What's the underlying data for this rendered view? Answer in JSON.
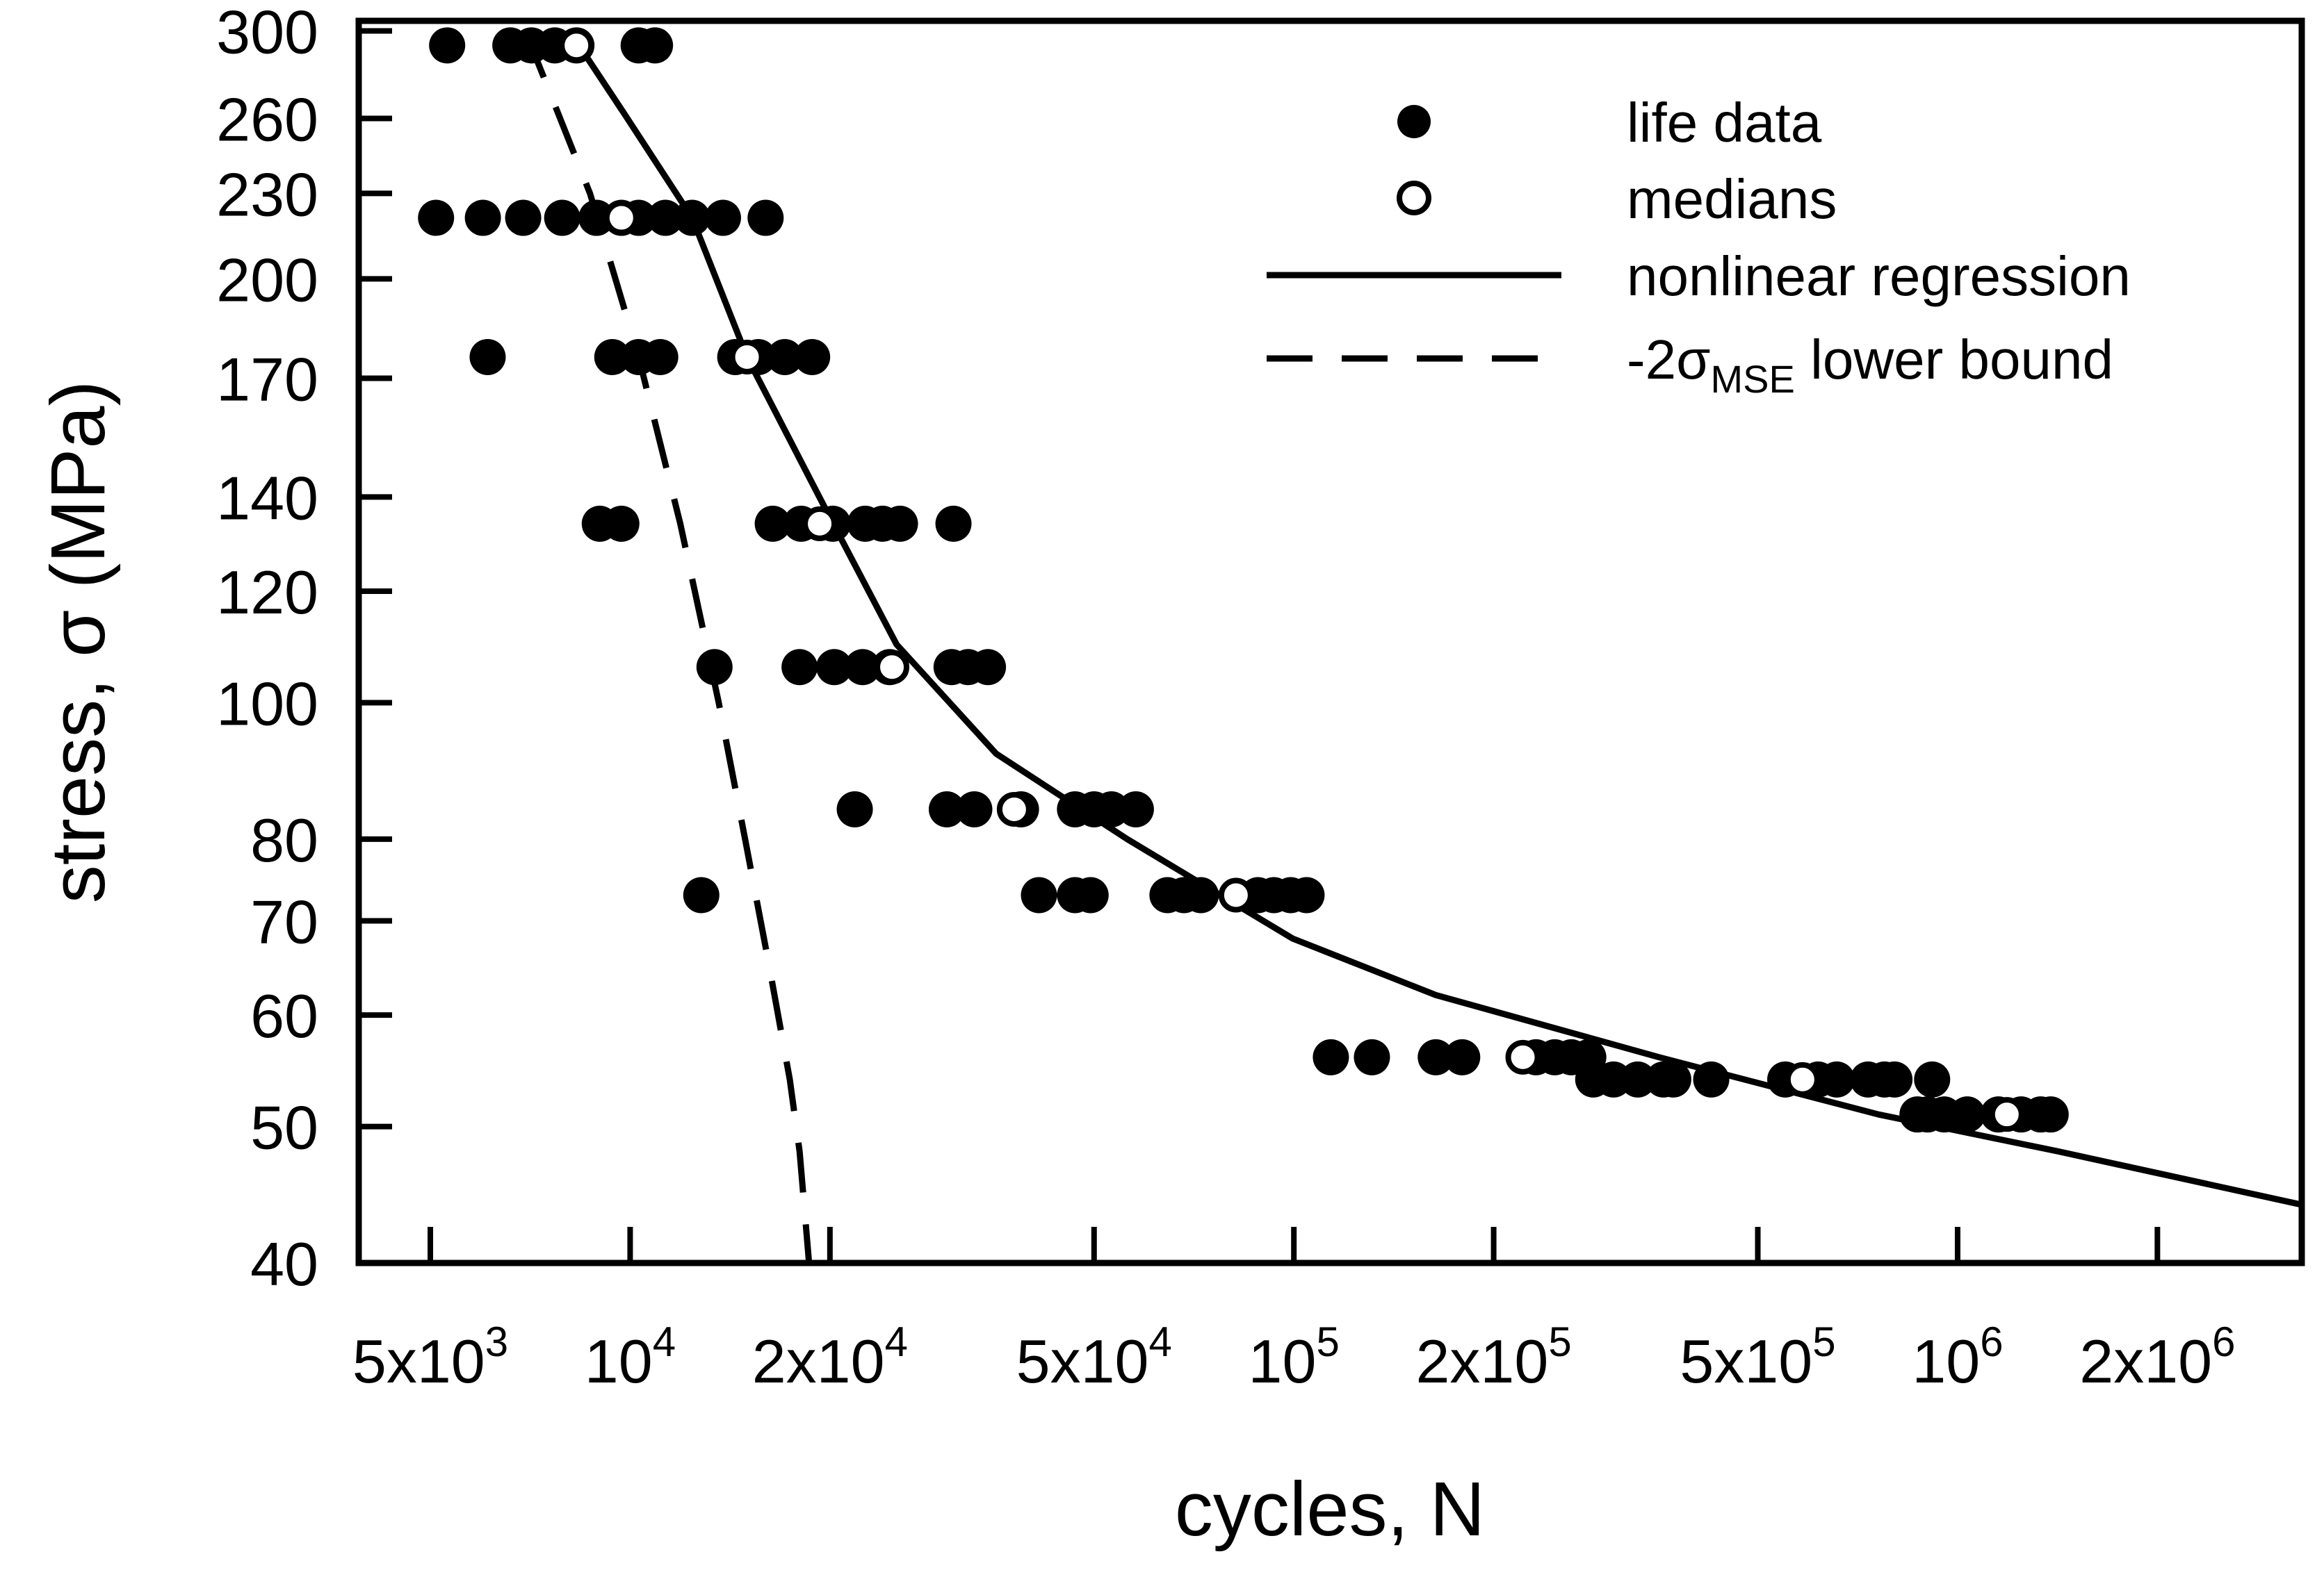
{
  "chart_data": {
    "type": "scatter",
    "xlabel": "cycles, N",
    "ylabel": "stress, σ (MPa)",
    "x_scale": "log",
    "y_scale": "log",
    "xlim": [
      3900,
      3300000
    ],
    "ylim": [
      40,
      305
    ],
    "x_ticks": [
      {
        "value": 5000,
        "base": "5x10",
        "exp": "3"
      },
      {
        "value": 10000,
        "base": "10",
        "exp": "4"
      },
      {
        "value": 20000,
        "base": "2x10",
        "exp": "4"
      },
      {
        "value": 50000,
        "base": "5x10",
        "exp": "4"
      },
      {
        "value": 100000,
        "base": "10",
        "exp": "5"
      },
      {
        "value": 200000,
        "base": "2x10",
        "exp": "5"
      },
      {
        "value": 500000,
        "base": "5x10",
        "exp": "5"
      },
      {
        "value": 1000000,
        "base": "10",
        "exp": "6"
      },
      {
        "value": 2000000,
        "base": "2x10",
        "exp": "6"
      }
    ],
    "y_ticks": [
      {
        "value": 40,
        "label": "40"
      },
      {
        "value": 50,
        "label": "50"
      },
      {
        "value": 60,
        "label": "60"
      },
      {
        "value": 70,
        "label": "70"
      },
      {
        "value": 80,
        "label": "80"
      },
      {
        "value": 100,
        "label": "100"
      },
      {
        "value": 120,
        "label": "120"
      },
      {
        "value": 140,
        "label": "140"
      },
      {
        "value": 170,
        "label": "170"
      },
      {
        "value": 200,
        "label": "200"
      },
      {
        "value": 230,
        "label": "230"
      },
      {
        "value": 260,
        "label": "260"
      },
      {
        "value": 300,
        "label": "300"
      }
    ],
    "legend": {
      "position": "top-right",
      "entries": [
        {
          "key": "life_data",
          "text": "life data"
        },
        {
          "key": "medians",
          "text": "medians"
        },
        {
          "key": "regression",
          "text": "nonlinear regression"
        },
        {
          "key": "lower_bound",
          "text_prefix": "-2σ",
          "text_sub": "MSE",
          "text_suffix": " lower bound"
        }
      ]
    },
    "series": [
      {
        "name": "life data",
        "kind": "filled-points",
        "points": [
          [
            5300,
            293
          ],
          [
            6600,
            293
          ],
          [
            7100,
            293
          ],
          [
            7700,
            293
          ],
          [
            8300,
            293
          ],
          [
            10300,
            293
          ],
          [
            10900,
            293
          ],
          [
            5100,
            221
          ],
          [
            6000,
            221
          ],
          [
            6900,
            221
          ],
          [
            7900,
            221
          ],
          [
            8900,
            221
          ],
          [
            9700,
            221
          ],
          [
            10300,
            221
          ],
          [
            11300,
            221
          ],
          [
            12400,
            221
          ],
          [
            13800,
            221
          ],
          [
            16000,
            221
          ],
          [
            6100,
            176
          ],
          [
            9400,
            176
          ],
          [
            10300,
            176
          ],
          [
            11100,
            176
          ],
          [
            14400,
            176
          ],
          [
            15600,
            176
          ],
          [
            17100,
            176
          ],
          [
            18800,
            176
          ],
          [
            9000,
            134
          ],
          [
            9700,
            134
          ],
          [
            16400,
            134
          ],
          [
            18100,
            134
          ],
          [
            20200,
            134
          ],
          [
            22600,
            134
          ],
          [
            24000,
            134
          ],
          [
            25500,
            134
          ],
          [
            30700,
            134
          ],
          [
            13400,
            106
          ],
          [
            18000,
            106
          ],
          [
            20300,
            106
          ],
          [
            22400,
            106
          ],
          [
            24600,
            106
          ],
          [
            30500,
            106
          ],
          [
            32300,
            106
          ],
          [
            34600,
            106
          ],
          [
            21800,
            84
          ],
          [
            30000,
            84
          ],
          [
            33000,
            84
          ],
          [
            38800,
            84
          ],
          [
            46800,
            84
          ],
          [
            50000,
            84
          ],
          [
            53100,
            84
          ],
          [
            57800,
            84
          ],
          [
            12800,
            73
          ],
          [
            41300,
            73
          ],
          [
            46800,
            73
          ],
          [
            49400,
            73
          ],
          [
            64500,
            73
          ],
          [
            68300,
            73
          ],
          [
            72400,
            73
          ],
          [
            88300,
            73
          ],
          [
            93300,
            73
          ],
          [
            98900,
            73
          ],
          [
            104500,
            73
          ],
          [
            113700,
            56
          ],
          [
            131100,
            56
          ],
          [
            163600,
            56
          ],
          [
            179300,
            56
          ],
          [
            231600,
            56
          ],
          [
            247200,
            56
          ],
          [
            261800,
            56
          ],
          [
            277700,
            56
          ],
          [
            282500,
            54
          ],
          [
            303100,
            54
          ],
          [
            329700,
            54
          ],
          [
            360300,
            54
          ],
          [
            372900,
            54
          ],
          [
            425400,
            54
          ],
          [
            550000,
            54
          ],
          [
            616500,
            54
          ],
          [
            657600,
            54
          ],
          [
            733100,
            54
          ],
          [
            776000,
            54
          ],
          [
            803300,
            54
          ],
          [
            915400,
            54
          ],
          [
            870100,
            51
          ],
          [
            901100,
            51
          ],
          [
            954100,
            51
          ],
          [
            1034100,
            51
          ],
          [
            1152100,
            51
          ],
          [
            1246600,
            51
          ],
          [
            1334200,
            51
          ],
          [
            1381000,
            51
          ]
        ]
      },
      {
        "name": "medians",
        "kind": "open-points",
        "points": [
          [
            8300,
            293
          ],
          [
            9700,
            221
          ],
          [
            15000,
            176
          ],
          [
            19300,
            134
          ],
          [
            24800,
            106
          ],
          [
            37900,
            84
          ],
          [
            81800,
            73
          ],
          [
            221300,
            56
          ],
          [
            583900,
            54
          ],
          [
            1186300,
            51
          ]
        ]
      },
      {
        "name": "nonlinear regression",
        "kind": "solid-line",
        "points": [
          [
            8100,
            300
          ],
          [
            9800,
            262
          ],
          [
            12400,
            221
          ],
          [
            15000,
            176
          ],
          [
            19900,
            136
          ],
          [
            25200,
            110
          ],
          [
            35600,
            92
          ],
          [
            56100,
            80
          ],
          [
            99600,
            68
          ],
          [
            163600,
            62
          ],
          [
            355000,
            56
          ],
          [
            760000,
            51
          ],
          [
            1420000,
            48
          ],
          [
            3300000,
            44
          ]
        ]
      },
      {
        "name": "-2σMSE lower bound",
        "kind": "dashed-line",
        "points": [
          [
            6950,
            300
          ],
          [
            8700,
            230
          ],
          [
            10300,
            176
          ],
          [
            11900,
            134
          ],
          [
            13600,
            100
          ],
          [
            14900,
            80
          ],
          [
            16200,
            65
          ],
          [
            17400,
            54
          ],
          [
            18000,
            48
          ],
          [
            18600,
            40
          ]
        ]
      }
    ]
  }
}
